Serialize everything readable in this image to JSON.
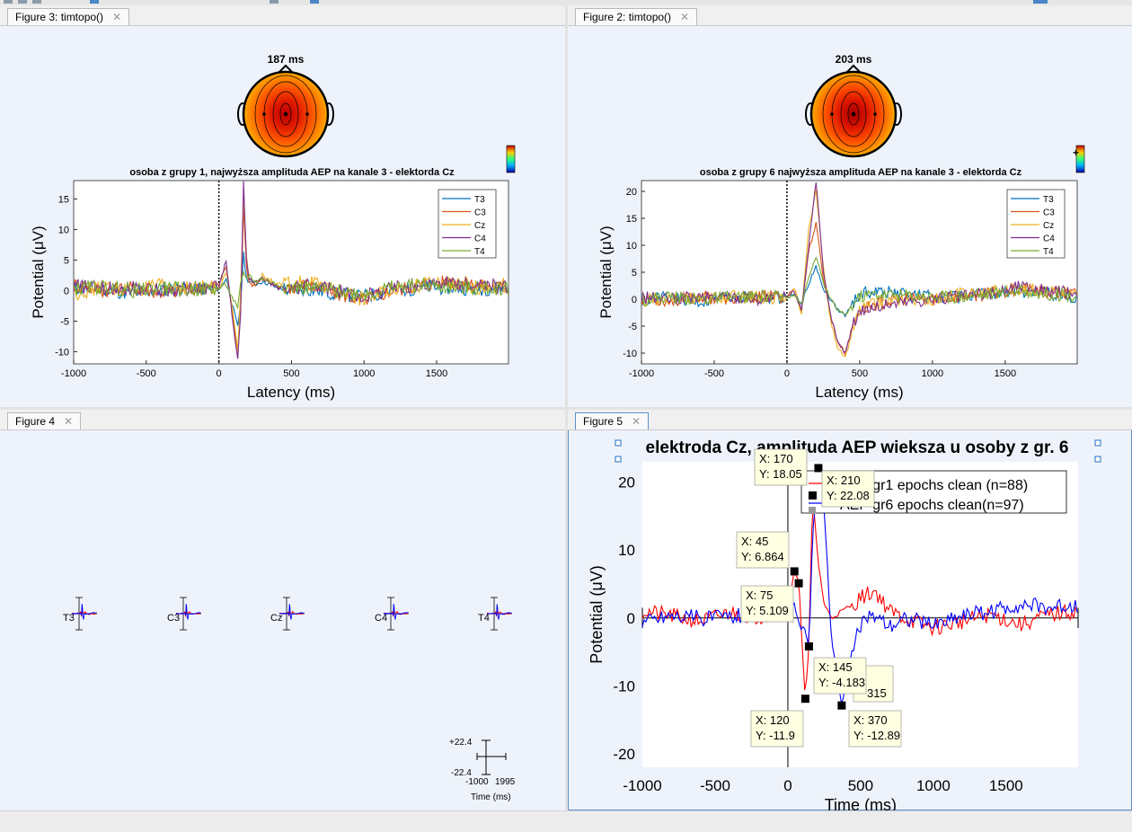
{
  "figures": {
    "fig3": {
      "tab_title": "Figure 3:  timtopo()",
      "topo_label": "187 ms",
      "title": "osoba z grupy 1, najwyższa amplituda AEP na kanale 3 - elektorda Cz",
      "xlabel": "Latency (ms)",
      "ylabel": "Potential (μV)",
      "xticks": [
        "-1000",
        "-500",
        "0",
        "500",
        "1000",
        "1500"
      ],
      "yticks": [
        "-10",
        "-5",
        "0",
        "5",
        "10",
        "15"
      ],
      "legend": [
        "T3",
        "C3",
        "Cz",
        "C4",
        "T4"
      ]
    },
    "fig2": {
      "tab_title": "Figure 2:  timtopo()",
      "topo_label": "203 ms",
      "title": "osoba z grupy 6 najwyższa amplituda AEP na kanale 3 - elektorda Cz",
      "xlabel": "Latency (ms)",
      "ylabel": "Potential (μV)",
      "xticks": [
        "-1000",
        "-500",
        "0",
        "500",
        "1000",
        "1500"
      ],
      "yticks": [
        "-10",
        "-5",
        "0",
        "5",
        "10",
        "15",
        "20"
      ],
      "legend": [
        "T3",
        "C3",
        "Cz",
        "C4",
        "T4"
      ],
      "colorbar_mark": "+"
    },
    "fig4": {
      "tab_title": "Figure 4",
      "channels": [
        "T3",
        "C3",
        "Cz",
        "C4",
        "T4"
      ],
      "scale_top": "+22.4",
      "scale_bottom": "-22.4",
      "scale_xmin": "-1000",
      "scale_xmax": "1995",
      "time_label": "Time (ms)"
    },
    "fig5": {
      "tab_title": "Figure 5",
      "title": "elektroda Cz, amplituda AEP wieksza u osoby z gr. 6",
      "xlabel": "Time (ms)",
      "ylabel": "Potential (μV)",
      "xticks": [
        "-1000",
        "-500",
        "0",
        "500",
        "1000",
        "1500"
      ],
      "yticks": [
        "-20",
        "-10",
        "0",
        "10",
        "20"
      ],
      "legend": [
        "AEP gr1 epochs clean (n=88)",
        "AEP gr6 epochs clean(n=97)"
      ],
      "datatips": [
        {
          "x": "X: 170",
          "y": "Y: 18.05"
        },
        {
          "x": "X: 210",
          "y": "Y: 22.08"
        },
        {
          "x": "X: 45",
          "y": "Y: 6.864"
        },
        {
          "x": "X: 75",
          "y": "Y: 5.109"
        },
        {
          "x": "X: 145",
          "y": "Y: -4.183"
        },
        {
          "x": "X: 120",
          "y": "Y: -11.9"
        },
        {
          "x": "X: 370",
          "y": "Y: -12.89"
        }
      ],
      "hidden_tip_fragment": "315"
    }
  },
  "colors": {
    "T3": "#0072bd",
    "C3": "#d95319",
    "Cz": "#edb120",
    "C4": "#7e2f8e",
    "T4": "#77ac30",
    "gr1": "#ff0000",
    "gr6": "#0000ff"
  },
  "chart_data": [
    {
      "type": "line",
      "title": "osoba z grupy 1, najwyższa amplituda AEP na kanale 3 - elektorda Cz",
      "xlabel": "Latency (ms)",
      "ylabel": "Potential (μV)",
      "xlim": [
        -1000,
        1995
      ],
      "ylim": [
        -12,
        18
      ],
      "x": [
        -1000,
        -800,
        -600,
        -400,
        -200,
        0,
        50,
        100,
        130,
        150,
        170,
        190,
        210,
        250,
        300,
        400,
        500,
        600,
        800,
        1000,
        1200,
        1400,
        1600,
        1800,
        1995
      ],
      "series": [
        {
          "name": "T3",
          "values": [
            0.5,
            0.3,
            -0.5,
            0.2,
            0.4,
            0.2,
            2,
            -3,
            -6,
            -2,
            6,
            2,
            1.5,
            1,
            1.5,
            0.5,
            0,
            0.3,
            -0.5,
            -1,
            0,
            0.5,
            0.5,
            0.3,
            0.5
          ]
        },
        {
          "name": "C3",
          "values": [
            1,
            0,
            0.5,
            -0.3,
            0,
            1,
            4,
            -5,
            -11,
            -3,
            14,
            4,
            1,
            1,
            2,
            0.5,
            0.5,
            1,
            -0.5,
            -1.5,
            0,
            1,
            1.5,
            0.8,
            0.5
          ]
        },
        {
          "name": "Cz",
          "values": [
            -0.5,
            0.5,
            0,
            0.8,
            0.5,
            0.5,
            3,
            -4,
            -10,
            0,
            16,
            6,
            2,
            1,
            2.5,
            1,
            1,
            1.5,
            0,
            -1.5,
            0.5,
            1,
            1.2,
            0.5,
            1
          ]
        },
        {
          "name": "C4",
          "values": [
            0.8,
            0.3,
            0.5,
            0,
            0.3,
            0.5,
            5,
            -6,
            -11,
            -4,
            18,
            5,
            2,
            1.2,
            2,
            0.5,
            0.2,
            1,
            0,
            -1,
            0.5,
            1,
            1.3,
            0.6,
            0.8
          ]
        },
        {
          "name": "T4",
          "values": [
            0.3,
            0.6,
            0,
            0.4,
            0.2,
            0.3,
            1,
            -1.5,
            -3,
            1,
            3,
            2,
            2.5,
            1.5,
            2,
            1,
            0.5,
            0.5,
            0,
            -0.5,
            0.5,
            1,
            0.5,
            0.3,
            0.5
          ]
        }
      ],
      "legend_position": "top-right"
    },
    {
      "type": "line",
      "title": "osoba z grupy 6 najwyższa amplituda AEP na kanale 3 - elektorda Cz",
      "xlabel": "Latency (ms)",
      "ylabel": "Potential (μV)",
      "xlim": [
        -1000,
        1995
      ],
      "ylim": [
        -12,
        22
      ],
      "x": [
        -1000,
        -800,
        -600,
        -400,
        -200,
        0,
        50,
        100,
        150,
        200,
        250,
        300,
        350,
        400,
        450,
        500,
        600,
        800,
        1000,
        1200,
        1400,
        1600,
        1800,
        1995
      ],
      "series": [
        {
          "name": "T3",
          "values": [
            0,
            0.3,
            -0.5,
            0.5,
            0.3,
            0.2,
            1,
            -1,
            3,
            6,
            2,
            0,
            -2,
            -3,
            -1,
            1,
            1.5,
            1,
            0.5,
            0.5,
            1,
            1.5,
            1,
            0.5
          ]
        },
        {
          "name": "C3",
          "values": [
            0.2,
            -0.3,
            0.5,
            0,
            0.5,
            0.5,
            2,
            -2,
            9,
            14,
            4,
            -3,
            -8,
            -10,
            -5,
            -2,
            -1,
            0,
            0,
            0.5,
            1,
            2,
            1,
            1
          ]
        },
        {
          "name": "Cz",
          "values": [
            -0.5,
            0.5,
            0,
            0.5,
            0.2,
            0.3,
            2,
            -3,
            13,
            20,
            6,
            -4,
            -9,
            -11,
            -6,
            -2,
            -1,
            0,
            0,
            1,
            1.5,
            2,
            1.5,
            1
          ]
        },
        {
          "name": "C4",
          "values": [
            0.3,
            0,
            0.3,
            0.5,
            0,
            0.5,
            1.5,
            -2,
            10,
            22,
            5,
            -3,
            -8,
            -10,
            -5,
            -2,
            -1.5,
            -0.5,
            0,
            0.5,
            1,
            2.5,
            1.5,
            1
          ]
        },
        {
          "name": "T4",
          "values": [
            0,
            0.5,
            0,
            0.3,
            0.5,
            0.4,
            1,
            -1,
            4,
            8,
            3,
            0,
            -2,
            -3,
            -1,
            0.5,
            1,
            0.8,
            0.5,
            0.5,
            1,
            1.5,
            1,
            0.5
          ]
        }
      ],
      "legend_position": "top-right"
    },
    {
      "type": "line",
      "title": "elektroda Cz, amplituda AEP wieksza u osoby z gr. 6",
      "xlabel": "Time (ms)",
      "ylabel": "Potential (μV)",
      "xlim": [
        -1000,
        1995
      ],
      "ylim": [
        -22,
        23
      ],
      "x": [
        -1000,
        -800,
        -600,
        -400,
        -200,
        0,
        45,
        75,
        120,
        145,
        170,
        210,
        250,
        300,
        370,
        450,
        500,
        600,
        700,
        800,
        1000,
        1200,
        1400,
        1600,
        1800,
        1995
      ],
      "series": [
        {
          "name": "AEP gr1 epochs clean (n=88)",
          "values": [
            1,
            0.3,
            -0.5,
            0.8,
            0.2,
            1,
            6.864,
            5.109,
            -11.9,
            -4.183,
            18.05,
            8,
            2,
            0,
            1,
            2,
            3,
            4,
            1,
            0,
            -1.5,
            -0.5,
            0.5,
            -1,
            0.5,
            1
          ]
        },
        {
          "name": "AEP gr6 epochs clean(n=97)",
          "values": [
            -0.5,
            0.5,
            0,
            0.3,
            0.8,
            0.5,
            2,
            -1,
            -2,
            -4.183,
            12,
            22.08,
            16,
            -3.2,
            -12.89,
            -4,
            -1,
            0.5,
            -1,
            0,
            -1,
            0.5,
            1,
            2,
            1.5,
            2
          ]
        }
      ],
      "datatips": [
        [
          170,
          18.05
        ],
        [
          210,
          22.08
        ],
        [
          45,
          6.864
        ],
        [
          75,
          5.109
        ],
        [
          145,
          -4.183
        ],
        [
          120,
          -11.9
        ],
        [
          370,
          -12.89
        ]
      ],
      "legend_position": "top-right"
    }
  ]
}
